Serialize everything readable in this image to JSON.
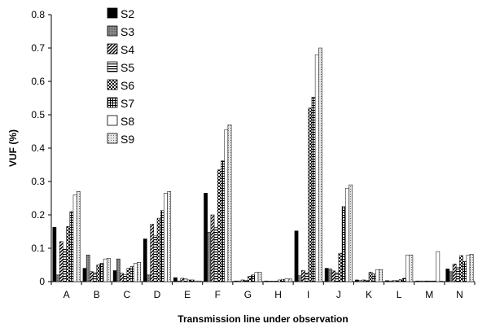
{
  "chart_data": {
    "type": "bar",
    "xlabel": "Transmission line under observation",
    "ylabel": "VUF (%)",
    "ylim": [
      0,
      0.8
    ],
    "yticks": [
      "0",
      "0.1",
      "0.2",
      "0.3",
      "0.4",
      "0.5",
      "0.6",
      "0.7",
      "0.8"
    ],
    "grid": false,
    "legend_position": "top-left",
    "categories": [
      "A",
      "B",
      "C",
      "D",
      "E",
      "F",
      "G",
      "H",
      "I",
      "J",
      "K",
      "L",
      "M",
      "N"
    ],
    "series": [
      {
        "name": "S2",
        "pattern": "solid-black",
        "values": [
          0.163,
          0.04,
          0.033,
          0.128,
          0.012,
          0.265,
          0.002,
          0.002,
          0.152,
          0.04,
          0.005,
          0.003,
          0.002,
          0.038
        ]
      },
      {
        "name": "S3",
        "pattern": "gray-fine",
        "values": [
          0.02,
          0.08,
          0.068,
          0.02,
          0.002,
          0.148,
          0.002,
          0.001,
          0.018,
          0.038,
          0.003,
          0.002,
          0.002,
          0.03
        ]
      },
      {
        "name": "S4",
        "pattern": "diagonal",
        "values": [
          0.12,
          0.03,
          0.025,
          0.172,
          0.01,
          0.2,
          0.005,
          0.001,
          0.033,
          0.032,
          0.005,
          0.003,
          0.002,
          0.053
        ]
      },
      {
        "name": "S5",
        "pattern": "horizontal",
        "values": [
          0.097,
          0.027,
          0.021,
          0.137,
          0.008,
          0.162,
          0.004,
          0.001,
          0.026,
          0.027,
          0.004,
          0.003,
          0.002,
          0.043
        ]
      },
      {
        "name": "S6",
        "pattern": "checker",
        "values": [
          0.165,
          0.05,
          0.04,
          0.19,
          0.005,
          0.335,
          0.016,
          0.005,
          0.52,
          0.085,
          0.028,
          0.006,
          0.002,
          0.078
        ]
      },
      {
        "name": "S7",
        "pattern": "grid",
        "values": [
          0.21,
          0.055,
          0.045,
          0.213,
          0.005,
          0.362,
          0.02,
          0.007,
          0.553,
          0.225,
          0.023,
          0.01,
          0.002,
          0.06
        ]
      },
      {
        "name": "S8",
        "pattern": "white",
        "values": [
          0.26,
          0.068,
          0.055,
          0.265,
          0.002,
          0.455,
          0.028,
          0.008,
          0.68,
          0.28,
          0.036,
          0.08,
          0.09,
          0.08
        ]
      },
      {
        "name": "S9",
        "pattern": "dotted",
        "values": [
          0.27,
          0.07,
          0.058,
          0.27,
          0.002,
          0.47,
          0.028,
          0.008,
          0.7,
          0.29,
          0.036,
          0.08,
          0.001,
          0.082
        ]
      }
    ]
  }
}
